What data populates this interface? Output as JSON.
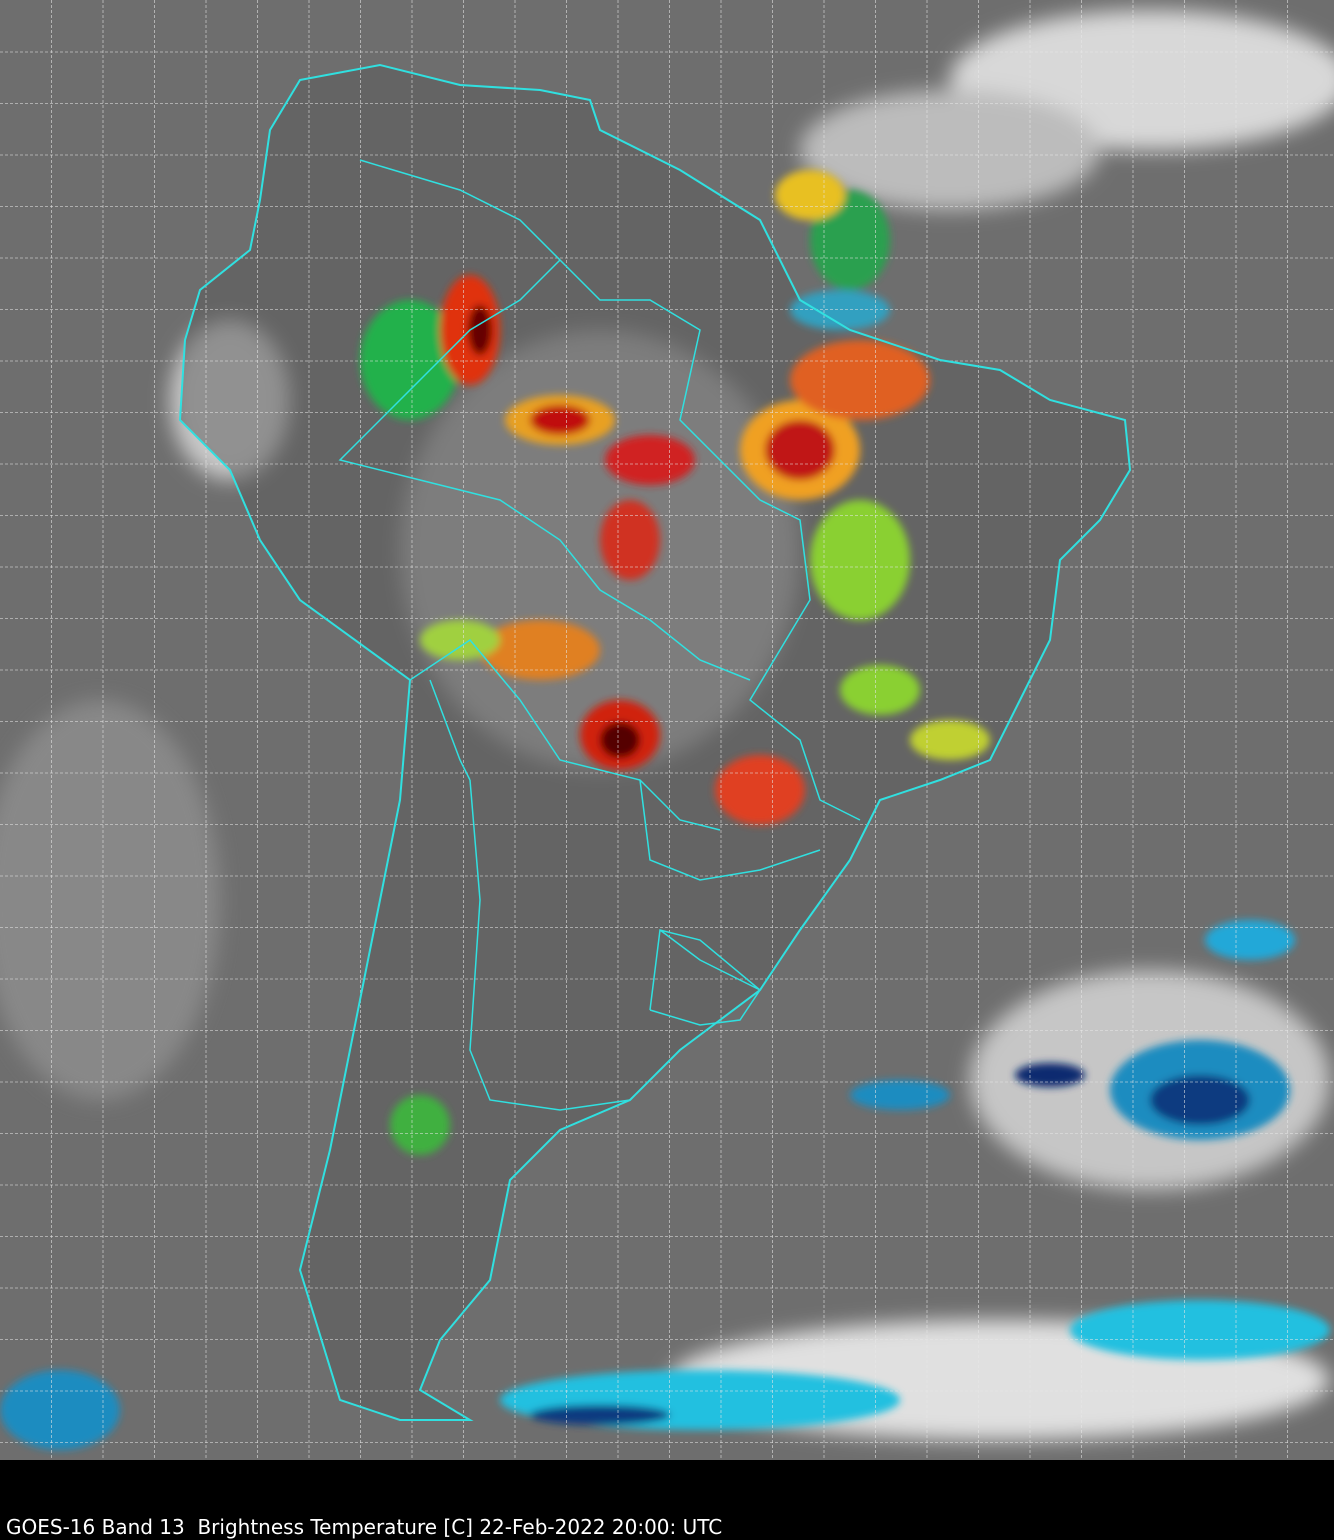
{
  "caption": "GOES-16 Band 13  Brightness Temperature [C] 22-Feb-2022 20:00: UTC"
}
